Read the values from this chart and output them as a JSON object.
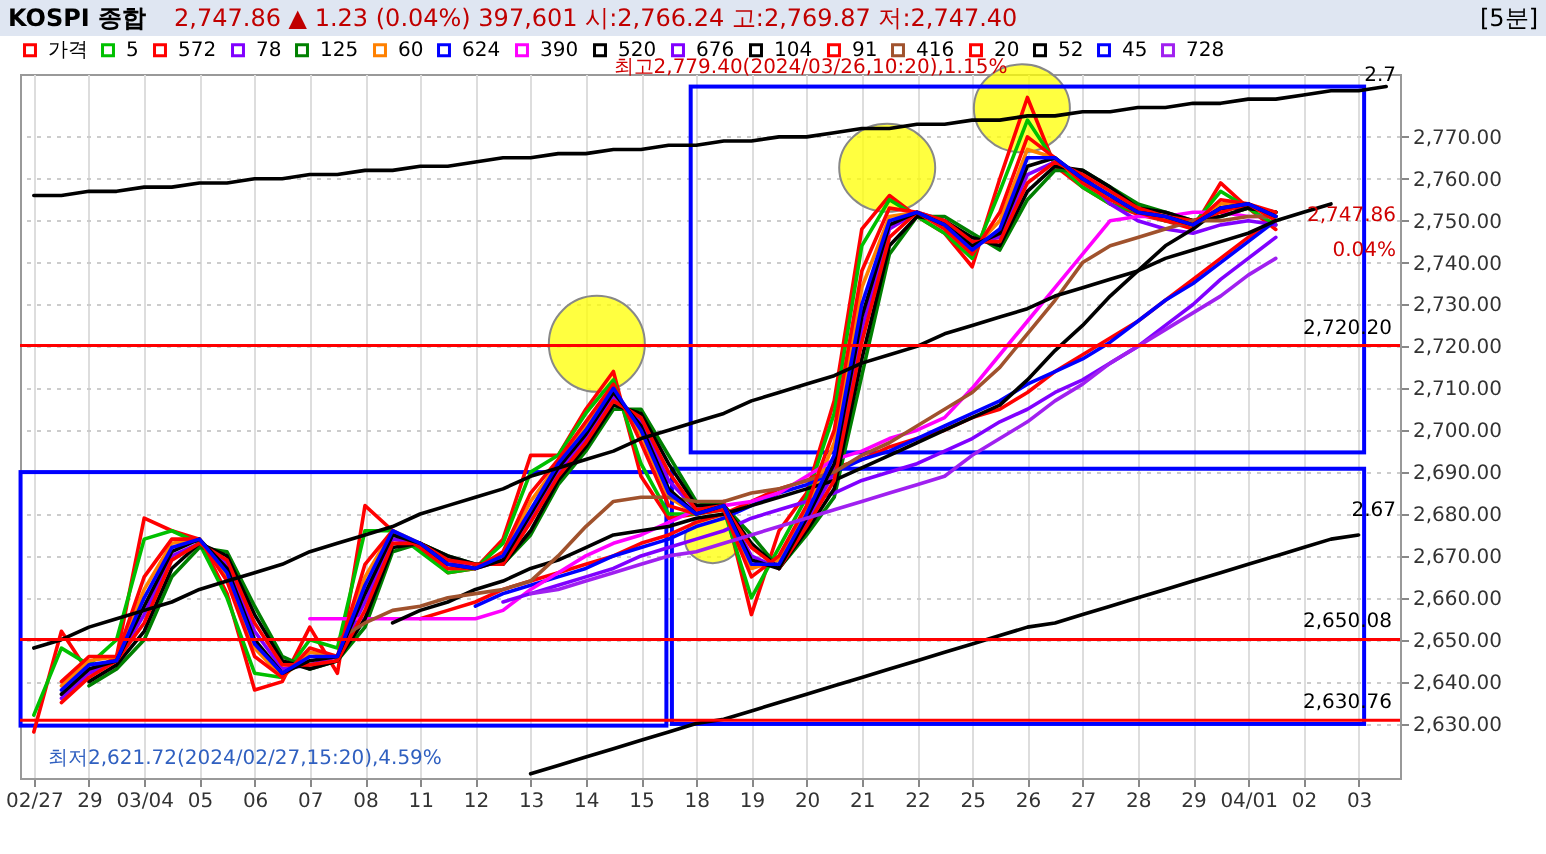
{
  "chart_data": {
    "type": "line",
    "title": "KOSPI 종합",
    "subtitle": "2,747.86 ▲ 1.23 (0.04%)   397,601   시:2,766.24   고:2,769.87   저:2,747.40",
    "annotations": [
      "[5분]",
      {
        "text": "최고2,779.40(2024/03/26,10:20),1.15%",
        "x": "26",
        "y": 2779.4
      },
      "최저2,621.72(2024/02/27,15:20),4.59%",
      "2,747.86",
      "0.04%",
      {
        "text": "2.7",
        "y": 2781
      },
      "2.67"
    ],
    "legend": "top left",
    "grid": true,
    "ylim": [
      2617,
      2785
    ],
    "yticks": [
      {
        "value": 2630,
        "label": "2,630.00"
      },
      {
        "value": 2640,
        "label": "2,640.00"
      },
      {
        "value": 2650,
        "label": "2,650.00"
      },
      {
        "value": 2660,
        "label": "2,660.00"
      },
      {
        "value": 2670,
        "label": "2,670.00"
      },
      {
        "value": 2680,
        "label": "2,680.00"
      },
      {
        "value": 2690,
        "label": "2,690.00"
      },
      {
        "value": 2700,
        "label": "2,700.00"
      },
      {
        "value": 2710,
        "label": "2,710.00"
      },
      {
        "value": 2720,
        "label": "2,720.00"
      },
      {
        "value": 2730,
        "label": "2,730.00"
      },
      {
        "value": 2740,
        "label": "2,740.00"
      },
      {
        "value": 2750,
        "label": "2,750.00"
      },
      {
        "value": 2760,
        "label": "2,760.00"
      },
      {
        "value": 2770,
        "label": "2,770.00"
      }
    ],
    "ref_lines": [
      {
        "axis": "y",
        "value": 2720.2,
        "label": "2,720.20",
        "color": "#ff0000"
      },
      {
        "axis": "y",
        "value": 2650.08,
        "label": "2,650.08",
        "color": "#ff0000"
      },
      {
        "axis": "y",
        "value": 2630.76,
        "label": "2,630.76",
        "color": "#ff0000"
      }
    ],
    "categories": [
      "02/27",
      null,
      "29",
      null,
      "03/04",
      null,
      "05",
      null,
      "06",
      null,
      "07",
      null,
      "08",
      null,
      "11",
      null,
      "12",
      null,
      "13",
      null,
      "14",
      null,
      "15",
      null,
      "18",
      null,
      "19",
      null,
      "20",
      null,
      "21",
      null,
      "22",
      null,
      "25",
      null,
      "26",
      null,
      "27",
      null,
      "28",
      null,
      "29",
      null,
      "04/01",
      null,
      "02",
      null,
      "03",
      null
    ],
    "series": [
      {
        "name": "가격",
        "color": "#ff0000",
        "values": [
          2628,
          2652,
          2642,
          2646,
          2679,
          2676,
          2674,
          2661,
          2638,
          2640,
          2653,
          2642,
          2682,
          2676,
          2672,
          2666,
          2667,
          2674,
          2694,
          2694,
          2705,
          2714,
          2689,
          2679,
          2680,
          2683,
          2656,
          2676,
          2685,
          2707,
          2748,
          2756,
          2751,
          2747,
          2739,
          2760,
          2779.4,
          2763,
          2758,
          2754,
          2751.5,
          2750,
          2748,
          2759,
          2753,
          2747.9,
          null,
          null,
          null,
          null
        ]
      },
      {
        "name": "5",
        "color": "#00c000",
        "values": [
          2632,
          2648,
          2644,
          2650,
          2674,
          2676,
          2673,
          2660,
          2642,
          2641,
          2650,
          2648,
          2676,
          2676,
          2671,
          2666,
          2667,
          2673,
          2690,
          2694,
          2704,
          2712,
          2692,
          2680,
          2680,
          2681,
          2660,
          2672,
          2684,
          2704,
          2744,
          2755,
          2751,
          2747,
          2741,
          2757,
          2774,
          2764,
          2758,
          2754,
          2752,
          2750,
          2749,
          2757,
          2753,
          2749,
          null,
          null,
          null,
          null
        ]
      },
      {
        "name": "572",
        "color": "#ff0000",
        "values": [
          null,
          null,
          null,
          null,
          null,
          null,
          null,
          null,
          null,
          null,
          null,
          null,
          null,
          null,
          2655,
          2657,
          2659,
          2662,
          2664,
          2666,
          2668,
          2670,
          2673,
          2675,
          2678,
          2680,
          2683,
          2686,
          2688,
          2691,
          2693,
          2696,
          2698,
          2700,
          2703,
          2705,
          2709,
          2714,
          2718,
          2722,
          2726,
          2731,
          2736,
          2741,
          2746,
          2750,
          null,
          null,
          null,
          null
        ]
      },
      {
        "name": "78",
        "color": "#8000ff",
        "values": [
          null,
          2636,
          2642,
          2645,
          2656,
          2670,
          2673,
          2668,
          2652,
          2643,
          2644,
          2646,
          2659,
          2674,
          2673,
          2669,
          2667,
          2669,
          2679,
          2690,
          2698,
          2708,
          2702,
          2688,
          2681,
          2682,
          2670,
          2667,
          2678,
          2690,
          2724,
          2748,
          2752,
          2750,
          2745,
          2746,
          2761,
          2764,
          2761,
          2754,
          2750,
          2748,
          2747,
          2749,
          2750,
          2749,
          null,
          null,
          null,
          null
        ]
      },
      {
        "name": "125",
        "color": "#008000",
        "values": [
          null,
          null,
          2639,
          2643,
          2650,
          2665,
          2672,
          2671,
          2658,
          2646,
          2643,
          2645,
          2653,
          2671,
          2673,
          2670,
          2668,
          2668,
          2675,
          2687,
          2695,
          2705,
          2705,
          2694,
          2683,
          2682,
          2675,
          2667,
          2675,
          2684,
          2713,
          2742,
          2751,
          2751,
          2747,
          2743,
          2755,
          2762,
          2762,
          2758,
          2754,
          2752,
          2750,
          2751,
          2753,
          2752,
          null,
          null,
          null,
          null
        ]
      },
      {
        "name": "60",
        "color": "#ff8000",
        "values": [
          null,
          2639,
          2645,
          2646,
          2662,
          2673,
          2674,
          2665,
          2648,
          2641,
          2647,
          2646,
          2665,
          2676,
          2673,
          2667,
          2667,
          2670,
          2683,
          2692,
          2701,
          2710,
          2699,
          2684,
          2680,
          2682,
          2667,
          2669,
          2681,
          2697,
          2734,
          2751,
          2752,
          2749,
          2743,
          2750,
          2767,
          2765,
          2759,
          2756,
          2752,
          2751,
          2749,
          2754,
          2754,
          2751,
          null,
          null,
          null,
          null
        ]
      },
      {
        "name": "624",
        "color": "#0000ff",
        "values": [
          null,
          null,
          null,
          null,
          null,
          null,
          null,
          null,
          null,
          null,
          null,
          null,
          null,
          null,
          null,
          null,
          2658,
          2661,
          2663,
          2665,
          2667,
          2670,
          2672,
          2674,
          2677,
          2679,
          2682,
          2685,
          2687,
          2690,
          2693,
          2695,
          2698,
          2701,
          2704,
          2707,
          2711,
          2714,
          2717,
          2721,
          2726,
          2731,
          2735,
          2740,
          2745,
          2750,
          null,
          null,
          null,
          null
        ]
      },
      {
        "name": "390",
        "color": "#ff00ff",
        "values": [
          null,
          null,
          null,
          null,
          null,
          null,
          null,
          null,
          null,
          null,
          2655,
          2655,
          2655,
          2655,
          2655,
          2655,
          2655,
          2657,
          2662,
          2666,
          2670,
          2673,
          2675,
          2678,
          2681,
          2682,
          2683,
          2685,
          2689,
          2693,
          2695,
          2698,
          2700,
          2703,
          2710,
          2718,
          2726,
          2734,
          2742,
          2750,
          2751,
          2751,
          2752,
          2752,
          2751,
          2751,
          null,
          null,
          null,
          null
        ]
      },
      {
        "name": "520",
        "color": "#000000",
        "values": [
          null,
          null,
          null,
          null,
          null,
          null,
          null,
          null,
          null,
          null,
          null,
          null,
          null,
          2654,
          2657,
          2659,
          2662,
          2664,
          2667,
          2669,
          2672,
          2675,
          2676,
          2677,
          2679,
          2680,
          2682,
          2684,
          2686,
          2688,
          2691,
          2694,
          2697,
          2700,
          2703,
          2706,
          2712,
          2719,
          2725,
          2732,
          2738,
          2744,
          2748,
          2753,
          2753,
          2752,
          null,
          null,
          null,
          null
        ]
      },
      {
        "name": "676",
        "color": "#8000ff",
        "values": [
          null,
          null,
          null,
          null,
          null,
          null,
          null,
          null,
          null,
          null,
          null,
          null,
          null,
          null,
          null,
          null,
          null,
          2659,
          2661,
          2663,
          2665,
          2667,
          2670,
          2672,
          2674,
          2676,
          2679,
          2681,
          2683,
          2685,
          2688,
          2690,
          2692,
          2695,
          2698,
          2702,
          2705,
          2709,
          2712,
          2716,
          2720,
          2725,
          2730,
          2736,
          2741,
          2746,
          null,
          null,
          null,
          null
        ]
      },
      {
        "name": "104",
        "color": "#000000",
        "values": [
          null,
          null,
          2640,
          2644,
          2652,
          2667,
          2673,
          2670,
          2656,
          2645,
          2643,
          2645,
          2655,
          2672,
          2673,
          2670,
          2668,
          2668,
          2676,
          2688,
          2696,
          2706,
          2704,
          2692,
          2682,
          2682,
          2673,
          2667,
          2676,
          2686,
          2717,
          2744,
          2751,
          2750,
          2746,
          2744,
          2757,
          2763,
          2762,
          2758,
          2753,
          2752,
          2750,
          2751,
          2753,
          2752,
          null,
          null,
          null,
          null
        ]
      },
      {
        "name": "91",
        "color": "#ff0000",
        "values": [
          null,
          2635,
          2641,
          2645,
          2654,
          2669,
          2673,
          2669,
          2654,
          2644,
          2644,
          2645,
          2657,
          2673,
          2673,
          2669,
          2668,
          2668,
          2678,
          2689,
          2697,
          2707,
          2703,
          2690,
          2681,
          2682,
          2672,
          2667,
          2677,
          2688,
          2721,
          2746,
          2752,
          2750,
          2745,
          2745,
          2759,
          2764,
          2761,
          2757,
          2753,
          2751,
          2750,
          2752,
          2754,
          2752,
          null,
          null,
          null,
          null
        ]
      },
      {
        "name": "416",
        "color": "#a0522d",
        "values": [
          null,
          null,
          null,
          null,
          null,
          null,
          null,
          null,
          null,
          null,
          null,
          2650,
          2654,
          2657,
          2658,
          2660,
          2661,
          2662,
          2664,
          2670,
          2677,
          2683,
          2684,
          2684,
          2683,
          2683,
          2685,
          2686,
          2688,
          2690,
          2694,
          2697,
          2701,
          2705,
          2709,
          2715,
          2723,
          2731,
          2740,
          2744,
          2746,
          2748,
          2750,
          2750,
          2751,
          2751,
          null,
          null,
          null,
          null
        ]
      },
      {
        "name": "20",
        "color": "#ff0000",
        "values": [
          null,
          2640,
          2646,
          2646,
          2665,
          2674,
          2674,
          2664,
          2646,
          2641,
          2648,
          2646,
          2668,
          2676,
          2672,
          2667,
          2667,
          2671,
          2685,
          2693,
          2702,
          2711,
          2697,
          2682,
          2680,
          2681,
          2665,
          2670,
          2682,
          2700,
          2738,
          2753,
          2752,
          2748,
          2742,
          2752,
          2770,
          2765,
          2759,
          2755,
          2752,
          2750,
          2749,
          2755,
          2754,
          2750,
          null,
          null,
          null,
          null
        ]
      },
      {
        "name": "52",
        "color": "#000000",
        "values": [
          null,
          2637,
          2643,
          2645,
          2658,
          2671,
          2674,
          2667,
          2650,
          2642,
          2645,
          2646,
          2661,
          2675,
          2673,
          2668,
          2667,
          2669,
          2680,
          2691,
          2699,
          2709,
          2701,
          2686,
          2680,
          2682,
          2669,
          2667,
          2679,
          2692,
          2727,
          2749,
          2752,
          2749,
          2744,
          2747,
          2763,
          2765,
          2760,
          2756,
          2752,
          2751,
          2749,
          2753,
          2754,
          2751,
          null,
          null,
          null,
          null
        ]
      },
      {
        "name": "45",
        "color": "#0000ff",
        "values": [
          null,
          2638,
          2644,
          2645,
          2660,
          2672,
          2674,
          2666,
          2649,
          2642,
          2646,
          2646,
          2663,
          2676,
          2673,
          2668,
          2667,
          2670,
          2681,
          2692,
          2700,
          2710,
          2700,
          2685,
          2680,
          2682,
          2668,
          2668,
          2680,
          2694,
          2730,
          2750,
          2752,
          2749,
          2743,
          2748,
          2765,
          2765,
          2760,
          2756,
          2752,
          2751,
          2749,
          2753,
          2754,
          2751,
          null,
          null,
          null,
          null
        ]
      },
      {
        "name": "728",
        "color": "#a020f0",
        "values": [
          null,
          null,
          null,
          null,
          null,
          null,
          null,
          null,
          null,
          null,
          null,
          null,
          null,
          null,
          null,
          null,
          null,
          null,
          2661,
          2662,
          2664,
          2666,
          2668,
          2670,
          2671,
          2673,
          2675,
          2677,
          2679,
          2681,
          2683,
          2685,
          2687,
          2689,
          2694,
          2698,
          2702,
          2707,
          2711,
          2716,
          2720,
          2724,
          2728,
          2732,
          2737,
          2741,
          null,
          null,
          null,
          null
        ]
      },
      {
        "color": "#000000",
        "values": [
          2756,
          2756,
          2757,
          2757,
          2758,
          2758,
          2759,
          2759,
          2760,
          2760,
          2761,
          2761,
          2762,
          2762,
          2763,
          2763,
          2764,
          2765,
          2765,
          2766,
          2766,
          2767,
          2767,
          2768,
          2768,
          2769,
          2769,
          2770,
          2770,
          2771,
          2772,
          2772,
          2773,
          2773,
          2774,
          2774,
          2775,
          2775,
          2776,
          2776,
          2777,
          2777,
          2778,
          2778,
          2779,
          2779,
          2780,
          2781,
          2781,
          2782
        ]
      },
      {
        "color": "#000000",
        "values": [
          2648,
          2650,
          2653,
          2655,
          2657,
          2659,
          2662,
          2664,
          2666,
          2668,
          2671,
          2673,
          2675,
          2677,
          2680,
          2682,
          2684,
          2686,
          2689,
          2691,
          2693,
          2695,
          2698,
          2700,
          2702,
          2704,
          2707,
          2709,
          2711,
          2713,
          2716,
          2718,
          2720,
          2723,
          2725,
          2727,
          2729,
          2732,
          2734,
          2736,
          2738,
          2741,
          2743,
          2745,
          2747,
          2750,
          2752,
          2754,
          null,
          null
        ]
      },
      {
        "color": "#000000",
        "values": [
          null,
          null,
          null,
          null,
          null,
          null,
          null,
          null,
          null,
          null,
          null,
          null,
          null,
          null,
          null,
          null,
          null,
          null,
          2618,
          2620,
          2622,
          2624,
          2626,
          2628,
          2630,
          2631,
          2633,
          2635,
          2637,
          2639,
          2641,
          2643,
          2645,
          2647,
          2649,
          2651,
          2653,
          2654,
          2656,
          2658,
          2660,
          2662,
          2664,
          2666,
          2668,
          2670,
          2672,
          2674,
          2675,
          null
        ]
      }
    ]
  }
}
